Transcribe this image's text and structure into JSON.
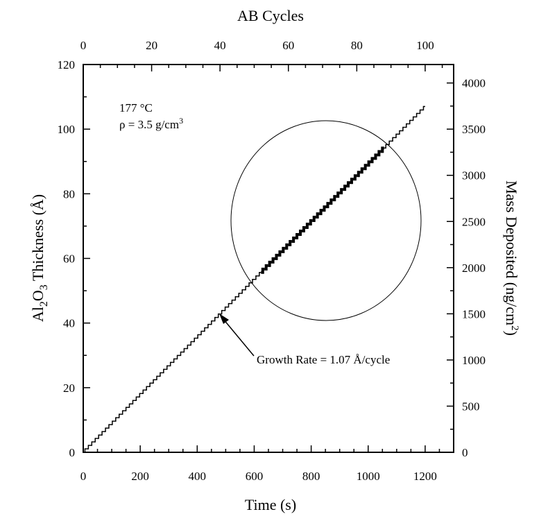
{
  "chart_data": {
    "type": "line",
    "title": "",
    "xlabel": "Time (s)",
    "xlabel_top": "AB Cycles",
    "ylabel": {
      "main": "Al",
      "sub1": "2",
      "mid": "O",
      "sub2": "3",
      "rest": " Thickness (Å)"
    },
    "ylabel_right": {
      "main": "Mass Deposited (ng/cm",
      "sup": "2",
      "end": ")"
    },
    "xlim": [
      0,
      1300
    ],
    "ylim": [
      0,
      120
    ],
    "ylim_right": [
      0,
      4200
    ],
    "xlim_top": [
      0,
      108.33
    ],
    "x_ticks": [
      "0",
      "200",
      "400",
      "600",
      "800",
      "1000",
      "1200"
    ],
    "x_top_ticks": [
      "0",
      "20",
      "40",
      "60",
      "80",
      "100"
    ],
    "y_ticks": [
      "0",
      "20",
      "40",
      "60",
      "80",
      "100",
      "120"
    ],
    "y_right_ticks": [
      "0",
      "500",
      "1000",
      "1500",
      "2000",
      "2500",
      "3000",
      "3500",
      "4000"
    ],
    "grid": false,
    "series": [
      {
        "x": [
          0,
          12,
          24,
          36,
          48,
          60,
          72,
          84,
          96,
          108,
          120,
          132,
          144,
          156,
          168,
          180,
          192,
          204,
          216,
          228,
          240,
          252,
          264,
          276,
          288,
          300,
          312,
          324,
          336,
          348,
          360,
          372,
          384,
          396,
          408,
          420,
          432,
          444,
          456,
          468,
          480,
          492,
          504,
          516,
          528,
          540,
          552,
          564,
          576,
          588,
          600,
          612,
          624,
          636,
          648,
          660,
          672,
          684,
          696,
          708,
          720,
          732,
          744,
          756,
          768,
          780,
          792,
          804,
          816,
          828,
          840,
          852,
          864,
          876,
          888,
          900,
          912,
          924,
          936,
          948,
          960,
          972,
          984,
          996,
          1008,
          1020,
          1032,
          1044,
          1056,
          1068,
          1080,
          1092,
          1104,
          1116,
          1128,
          1140,
          1152,
          1164,
          1176,
          1188,
          1200
        ],
        "y": [
          0,
          1.07,
          2.14,
          3.21,
          4.28,
          5.35,
          6.42,
          7.49,
          8.56,
          9.63,
          10.7,
          11.77,
          12.84,
          13.91,
          14.98,
          16.05,
          17.12,
          18.19,
          19.26,
          20.33,
          21.4,
          22.47,
          23.54,
          24.61,
          25.68,
          26.75,
          27.82,
          28.89,
          29.96,
          31.03,
          32.1,
          33.17,
          34.24,
          35.31,
          36.38,
          37.45,
          38.52,
          39.59,
          40.66,
          41.73,
          42.8,
          43.87,
          44.94,
          46.01,
          47.08,
          48.15,
          49.22,
          50.29,
          51.36,
          52.43,
          53.5,
          54.57,
          55.64,
          56.71,
          57.78,
          58.85,
          59.92,
          60.99,
          62.06,
          63.13,
          64.2,
          65.27,
          66.34,
          67.41,
          68.48,
          69.55,
          70.62,
          71.69,
          72.76,
          73.83,
          74.9,
          75.97,
          77.04,
          78.11,
          79.18,
          80.25,
          81.32,
          82.39,
          83.46,
          84.53,
          85.6,
          86.67,
          87.74,
          88.81,
          89.88,
          90.95,
          92.02,
          93.09,
          94.16,
          95.23,
          96.3,
          97.37,
          98.44,
          99.51,
          100.58,
          101.65,
          102.72,
          103.79,
          104.86,
          105.93,
          107.0
        ]
      }
    ],
    "highlight_range_s": [
      620,
      1060
    ],
    "annotations": {
      "temperature": "177 °C",
      "density": "ρ = 3.5 g/cm",
      "density_sup": "3",
      "growth_rate": "Growth Rate = 1.07 Å/cycle"
    },
    "colors": {
      "line": "#000000",
      "background": "#ffffff"
    }
  }
}
